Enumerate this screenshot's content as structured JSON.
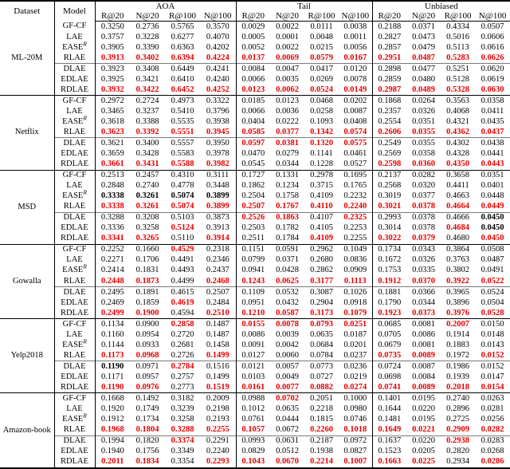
{
  "colors": {
    "highlight_red": "#e60000",
    "text": "#000000",
    "mid_rule_gray": "#7a7a7a"
  },
  "header": {
    "dataset": "Dataset",
    "model": "Model",
    "groups": [
      {
        "label": "AOA",
        "cols": [
          "R@20",
          "N@20",
          "R@100",
          "N@100"
        ]
      },
      {
        "label": "Tail",
        "cols": [
          "R@20",
          "N@20",
          "R@100",
          "N@100"
        ]
      },
      {
        "label": "Unbiased",
        "cols": [
          "R@20",
          "N@20",
          "R@100",
          "N@100"
        ]
      }
    ]
  },
  "blocks": [
    {
      "dataset": "ML-20M",
      "rows": [
        {
          "model": "GF-CF",
          "sup": "",
          "values": [
            "0.3250",
            "0.2736",
            "0.5765",
            "0.3570",
            "0.0029",
            "0.0022",
            "0.0111",
            "0.0038",
            "0.2188",
            "0.0371",
            "0.4334",
            "0.0507"
          ],
          "styles": "nnnnnnnnnnnn"
        },
        {
          "model": "LAE",
          "sup": "",
          "values": [
            "0.3757",
            "0.3228",
            "0.6277",
            "0.4070",
            "0.0005",
            "0.0001",
            "0.0048",
            "0.0011",
            "0.2827",
            "0.0473",
            "0.5016",
            "0.0606"
          ],
          "styles": "nnnnnnnnnnnn"
        },
        {
          "model": "EASE",
          "sup": "R",
          "values": [
            "0.3905",
            "0.3390",
            "0.6363",
            "0.4202",
            "0.0052",
            "0.0022",
            "0.0215",
            "0.0056",
            "0.2857",
            "0.0479",
            "0.5113",
            "0.0616"
          ],
          "styles": "nnnnnnnnnnnn"
        },
        {
          "model": "RLAE",
          "sup": "",
          "values": [
            "0.3913",
            "0.3402",
            "0.6394",
            "0.4224",
            "0.0137",
            "0.0069",
            "0.0579",
            "0.0167",
            "0.2951",
            "0.0487",
            "0.5283",
            "0.0626"
          ],
          "styles": "rrrrrrrrrrrr"
        },
        {
          "model": "DLAE",
          "sup": "",
          "values": [
            "0.3923",
            "0.3408",
            "0.6449",
            "0.4241",
            "0.0084",
            "0.0047",
            "0.0417",
            "0.0120",
            "0.2898",
            "0.0477",
            "0.5251",
            "0.0620"
          ],
          "styles": "nnnnnnnnnnnn"
        },
        {
          "model": "EDLAE",
          "sup": "",
          "values": [
            "0.3925",
            "0.3421",
            "0.6410",
            "0.4240",
            "0.0066",
            "0.0035",
            "0.0269",
            "0.0078",
            "0.2859",
            "0.0480",
            "0.5128",
            "0.0619"
          ],
          "styles": "nnnnnnnnnnnn"
        },
        {
          "model": "RDLAE",
          "sup": "",
          "values": [
            "0.3932",
            "0.3422",
            "0.6452",
            "0.4252",
            "0.0123",
            "0.0062",
            "0.0524",
            "0.0149",
            "0.2987",
            "0.0489",
            "0.5328",
            "0.0630"
          ],
          "styles": "rrrrrrrrrrrr"
        }
      ]
    },
    {
      "dataset": "Netflix",
      "rows": [
        {
          "model": "GF-CF",
          "sup": "",
          "values": [
            "0.2972",
            "0.2724",
            "0.4973",
            "0.3322",
            "0.0185",
            "0.0123",
            "0.0468",
            "0.0202",
            "0.1868",
            "0.0264",
            "0.3563",
            "0.0358"
          ],
          "styles": "nnnnnnnnnnnn"
        },
        {
          "model": "LAE",
          "sup": "",
          "values": [
            "0.3465",
            "0.3237",
            "0.5410",
            "0.3796",
            "0.0066",
            "0.0036",
            "0.0258",
            "0.0087",
            "0.2357",
            "0.0326",
            "0.4068",
            "0.0411"
          ],
          "styles": "nnnnnnnnnnnn"
        },
        {
          "model": "EASE",
          "sup": "R",
          "values": [
            "0.3618",
            "0.3388",
            "0.5535",
            "0.3938",
            "0.0404",
            "0.0222",
            "0.1093",
            "0.0408",
            "0.2554",
            "0.0351",
            "0.4321",
            "0.0435"
          ],
          "styles": "nnnnnnnnnnnn"
        },
        {
          "model": "RLAE",
          "sup": "",
          "values": [
            "0.3623",
            "0.3392",
            "0.5551",
            "0.3945",
            "0.0585",
            "0.0377",
            "0.1342",
            "0.0574",
            "0.2606",
            "0.0355",
            "0.4362",
            "0.0437"
          ],
          "styles": "rrrrrrrrrrrr"
        },
        {
          "model": "DLAE",
          "sup": "",
          "values": [
            "0.3621",
            "0.3400",
            "0.5557",
            "0.3950",
            "0.0597",
            "0.0381",
            "0.1320",
            "0.0575",
            "0.2549",
            "0.0355",
            "0.4302",
            "0.0438"
          ],
          "styles": "nnnnrrrrnnnn"
        },
        {
          "model": "EDLAE",
          "sup": "",
          "values": [
            "0.3659",
            "0.3428",
            "0.5583",
            "0.3978",
            "0.0470",
            "0.0279",
            "0.1141",
            "0.0461",
            "0.2569",
            "0.0358",
            "0.4328",
            "0.0441"
          ],
          "styles": "nnnnnnnnnnnn"
        },
        {
          "model": "RDLAE",
          "sup": "",
          "values": [
            "0.3661",
            "0.3431",
            "0.5588",
            "0.3982",
            "0.0545",
            "0.0344",
            "0.1228",
            "0.0527",
            "0.2598",
            "0.0360",
            "0.4350",
            "0.0443"
          ],
          "styles": "rrrrnnnnrrrr"
        }
      ]
    },
    {
      "dataset": "MSD",
      "rows": [
        {
          "model": "GF-CF",
          "sup": "",
          "values": [
            "0.2513",
            "0.2457",
            "0.4310",
            "0.3111",
            "0.1727",
            "0.1331",
            "0.2978",
            "0.1695",
            "0.2137",
            "0.0282",
            "0.3658",
            "0.0351"
          ],
          "styles": "nnnnnnnnnnnn"
        },
        {
          "model": "LAE",
          "sup": "",
          "values": [
            "0.2848",
            "0.2740",
            "0.4778",
            "0.3448",
            "0.1862",
            "0.1234",
            "0.3715",
            "0.1765",
            "0.2568",
            "0.0320",
            "0.4411",
            "0.0401"
          ],
          "styles": "nnnnnnnnnnnn"
        },
        {
          "model": "EASE",
          "sup": "R",
          "values": [
            "0.3338",
            "0.3261",
            "0.5074",
            "0.3899",
            "0.2504",
            "0.1758",
            "0.4109",
            "0.2232",
            "0.3019",
            "0.0377",
            "0.4663",
            "0.0448"
          ],
          "styles": "bbbbnnnnnnnn"
        },
        {
          "model": "RLAE",
          "sup": "",
          "values": [
            "0.3338",
            "0.3261",
            "0.5074",
            "0.3899",
            "0.2507",
            "0.1767",
            "0.4110",
            "0.2240",
            "0.3021",
            "0.0378",
            "0.4664",
            "0.0449"
          ],
          "styles": "rrrrrrrrrrrr"
        },
        {
          "model": "DLAE",
          "sup": "",
          "values": [
            "0.3288",
            "0.3208",
            "0.5103",
            "0.3873",
            "0.2526",
            "0.1863",
            "0.4107",
            "0.2325",
            "0.2993",
            "0.0378",
            "0.4666",
            "0.0450"
          ],
          "styles": "nnnnrrnrnnnb"
        },
        {
          "model": "EDLAE",
          "sup": "",
          "values": [
            "0.3336",
            "0.3258",
            "0.5124",
            "0.3913",
            "0.2503",
            "0.1782",
            "0.4105",
            "0.2253",
            "0.3014",
            "0.0378",
            "0.4684",
            "0.0450"
          ],
          "styles": "nnrnnnnnnnrb"
        },
        {
          "model": "RDLAE",
          "sup": "",
          "values": [
            "0.3341",
            "0.3265",
            "0.5110",
            "0.3914",
            "0.2511",
            "0.1784",
            "0.4109",
            "0.2255",
            "0.3022",
            "0.0379",
            "0.4680",
            "0.0450"
          ],
          "styles": "rrnrnnrnrrnr"
        }
      ]
    },
    {
      "dataset": "Gowalla",
      "rows": [
        {
          "model": "GF-CF",
          "sup": "",
          "values": [
            "0.2252",
            "0.1660",
            "0.4529",
            "0.2318",
            "0.1151",
            "0.0591",
            "0.2962",
            "0.1049",
            "0.1734",
            "0.0343",
            "0.3864",
            "0.0508"
          ],
          "styles": "nnrnnnnnnnnn"
        },
        {
          "model": "LAE",
          "sup": "",
          "values": [
            "0.2271",
            "0.1706",
            "0.4491",
            "0.2346",
            "0.0799",
            "0.0371",
            "0.2680",
            "0.0836",
            "0.1672",
            "0.0326",
            "0.3763",
            "0.0487"
          ],
          "styles": "nnnnnnnnnnnn"
        },
        {
          "model": "EASE",
          "sup": "R",
          "values": [
            "0.2414",
            "0.1831",
            "0.4493",
            "0.2437",
            "0.0941",
            "0.0428",
            "0.2862",
            "0.0909",
            "0.1753",
            "0.0335",
            "0.3802",
            "0.0491"
          ],
          "styles": "nnnnnnnnnnnn"
        },
        {
          "model": "RLAE",
          "sup": "",
          "values": [
            "0.2448",
            "0.1873",
            "0.4499",
            "0.2468",
            "0.1243",
            "0.0625",
            "0.3177",
            "0.1113",
            "0.1912",
            "0.0370",
            "0.3922",
            "0.0522"
          ],
          "styles": "rrnrrrrrrrrr"
        },
        {
          "model": "DLAE",
          "sup": "",
          "values": [
            "0.2495",
            "0.1891",
            "0.4615",
            "0.2507",
            "0.1109",
            "0.0532",
            "0.3087",
            "0.1026",
            "0.1881",
            "0.0366",
            "0.3965",
            "0.0524"
          ],
          "styles": "nnnnnnnnnnnn"
        },
        {
          "model": "EDLAE",
          "sup": "",
          "values": [
            "0.2469",
            "0.1859",
            "0.4619",
            "0.2484",
            "0.0951",
            "0.0432",
            "0.2904",
            "0.0918",
            "0.1790",
            "0.0344",
            "0.3896",
            "0.0504"
          ],
          "styles": "nnrnnnnnnnnn"
        },
        {
          "model": "RDLAE",
          "sup": "",
          "values": [
            "0.2499",
            "0.1900",
            "0.4594",
            "0.2510",
            "0.1210",
            "0.0587",
            "0.3173",
            "0.1079",
            "0.1923",
            "0.0373",
            "0.3976",
            "0.0528"
          ],
          "styles": "rrnrrrrrrrrr"
        }
      ]
    },
    {
      "dataset": "Yelp2018",
      "rows": [
        {
          "model": "GF-CF",
          "sup": "",
          "values": [
            "0.1134",
            "0.0900",
            "0.2858",
            "0.1487",
            "0.0155",
            "0.0078",
            "0.0793",
            "0.0251",
            "0.0685",
            "0.0081",
            "0.2007",
            "0.0150"
          ],
          "styles": "nnrnrrrrnnrn"
        },
        {
          "model": "LAE",
          "sup": "",
          "values": [
            "0.1160",
            "0.0954",
            "0.2720",
            "0.1487",
            "0.0086",
            "0.0039",
            "0.0635",
            "0.0187",
            "0.0705",
            "0.0086",
            "0.1914",
            "0.0148"
          ],
          "styles": "nnnnnnnnnnnn"
        },
        {
          "model": "EASE",
          "sup": "R",
          "values": [
            "0.1144",
            "0.0933",
            "0.2681",
            "0.1458",
            "0.0091",
            "0.0042",
            "0.0684",
            "0.0201",
            "0.0679",
            "0.0081",
            "0.1883",
            "0.0143"
          ],
          "styles": "nnnnnnnnnnnn"
        },
        {
          "model": "RLAE",
          "sup": "",
          "values": [
            "0.1173",
            "0.0968",
            "0.2726",
            "0.1499",
            "0.0127",
            "0.0060",
            "0.0784",
            "0.0237",
            "0.0735",
            "0.0089",
            "0.1972",
            "0.0152"
          ],
          "styles": "rrnrnnnnrrnr"
        },
        {
          "model": "DLAE",
          "sup": "",
          "values": [
            "0.1190",
            "0.0971",
            "0.2784",
            "0.1516",
            "0.0121",
            "0.0057",
            "0.0773",
            "0.0236",
            "0.0724",
            "0.0087",
            "0.1986",
            "0.0152"
          ],
          "styles": "bnrnnnnnnnnn"
        },
        {
          "model": "EDLAE",
          "sup": "",
          "values": [
            "0.1171",
            "0.0957",
            "0.2757",
            "0.1499",
            "0.0103",
            "0.0049",
            "0.0727",
            "0.0219",
            "0.0698",
            "0.0084",
            "0.1939",
            "0.0147"
          ],
          "styles": "nnnnnnnnnnnn"
        },
        {
          "model": "RDLAE",
          "sup": "",
          "values": [
            "0.1190",
            "0.0976",
            "0.2773",
            "0.1519",
            "0.0161",
            "0.0077",
            "0.0882",
            "0.0274",
            "0.0741",
            "0.0089",
            "0.2018",
            "0.0154"
          ],
          "styles": "rrnrrrrrrrrr"
        }
      ]
    },
    {
      "dataset": "Amazon-book",
      "rows": [
        {
          "model": "GF-CF",
          "sup": "",
          "values": [
            "0.1668",
            "0.1492",
            "0.3182",
            "0.2009",
            "0.0988",
            "0.0702",
            "0.2051",
            "0.1000",
            "0.1401",
            "0.0195",
            "0.2740",
            "0.0263"
          ],
          "styles": "nnnnnrnnnnnn"
        },
        {
          "model": "LAE",
          "sup": "",
          "values": [
            "0.1920",
            "0.1749",
            "0.3239",
            "0.2198",
            "0.1012",
            "0.0635",
            "0.2218",
            "0.0980",
            "0.1644",
            "0.0220",
            "0.2896",
            "0.0281"
          ],
          "styles": "nnnnnnnnnnnn"
        },
        {
          "model": "EASE",
          "sup": "R",
          "values": [
            "0.1912",
            "0.1734",
            "0.3258",
            "0.2193",
            "0.0761",
            "0.0444",
            "0.1815",
            "0.0746",
            "0.1481",
            "0.0195",
            "0.2725",
            "0.0256"
          ],
          "styles": "nnnnnnnnnnnn"
        },
        {
          "model": "RLAE",
          "sup": "",
          "values": [
            "0.1968",
            "0.1804",
            "0.3288",
            "0.2255",
            "0.1057",
            "0.0672",
            "0.2260",
            "0.1018",
            "0.1649",
            "0.0221",
            "0.2909",
            "0.0282"
          ],
          "styles": "rrrrrnrrrrrr"
        },
        {
          "model": "DLAE",
          "sup": "",
          "values": [
            "0.1994",
            "0.1820",
            "0.3374",
            "0.2291",
            "0.0993",
            "0.0631",
            "0.2187",
            "0.0972",
            "0.1637",
            "0.0220",
            "0.2938",
            "0.0283"
          ],
          "styles": "nnrnnnnnnnrn"
        },
        {
          "model": "EDLAE",
          "sup": "",
          "values": [
            "0.1940",
            "0.1756",
            "0.3349",
            "0.2240",
            "0.0829",
            "0.0512",
            "0.1938",
            "0.0827",
            "0.1523",
            "0.0205",
            "0.2820",
            "0.0268"
          ],
          "styles": "nnnnnnnnnnnn"
        },
        {
          "model": "RDLAE",
          "sup": "",
          "values": [
            "0.2011",
            "0.1834",
            "0.3354",
            "0.2293",
            "0.1043",
            "0.0670",
            "0.2214",
            "0.1007",
            "0.1663",
            "0.0225",
            "0.2934",
            "0.0286"
          ],
          "styles": "rrnrrrrrrrnr"
        }
      ]
    }
  ]
}
